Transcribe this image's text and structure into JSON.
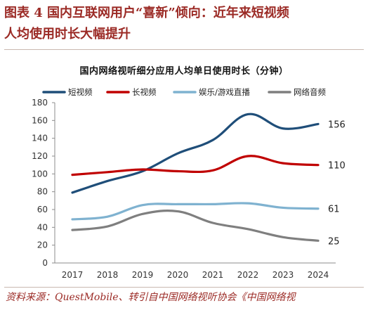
{
  "figure": {
    "title_line1": "图表 4   国内互联网用户“喜新”倾向：近年来短视频",
    "title_line2": "人均使用时长大幅提升",
    "source": "资料来源：QuestMobile、转引自中国网络视听协会《中国网络视"
  },
  "chart_data": {
    "type": "line",
    "title": "国内网络视听细分应用人均单日使用时长（分钟）",
    "x": [
      "2017",
      "2018",
      "2019",
      "2020",
      "2021",
      "2022",
      "2023",
      "2024"
    ],
    "ylim": [
      0,
      180
    ],
    "yticks": [
      "0",
      "20",
      "40",
      "60",
      "80",
      "100",
      "120",
      "140",
      "160",
      "180"
    ],
    "xlabel": "",
    "ylabel": "",
    "grid": false,
    "legend_position": "top",
    "series": [
      {
        "name": "短视频",
        "color": "#1f4e79",
        "values": [
          79,
          92,
          103,
          123,
          138,
          167,
          151,
          156
        ],
        "end_label": "156"
      },
      {
        "name": "长视频",
        "color": "#c00000",
        "values": [
          99,
          102,
          105,
          103,
          104,
          120,
          112,
          110
        ],
        "end_label": "110"
      },
      {
        "name": "娱乐/游戏直播",
        "color": "#7fb2d0",
        "values": [
          49,
          52,
          65,
          66,
          66,
          67,
          62,
          61
        ],
        "end_label": "61"
      },
      {
        "name": "网络音频",
        "color": "#7f7f7f",
        "values": [
          37,
          41,
          55,
          58,
          45,
          38,
          29,
          25
        ],
        "end_label": "25"
      }
    ]
  }
}
